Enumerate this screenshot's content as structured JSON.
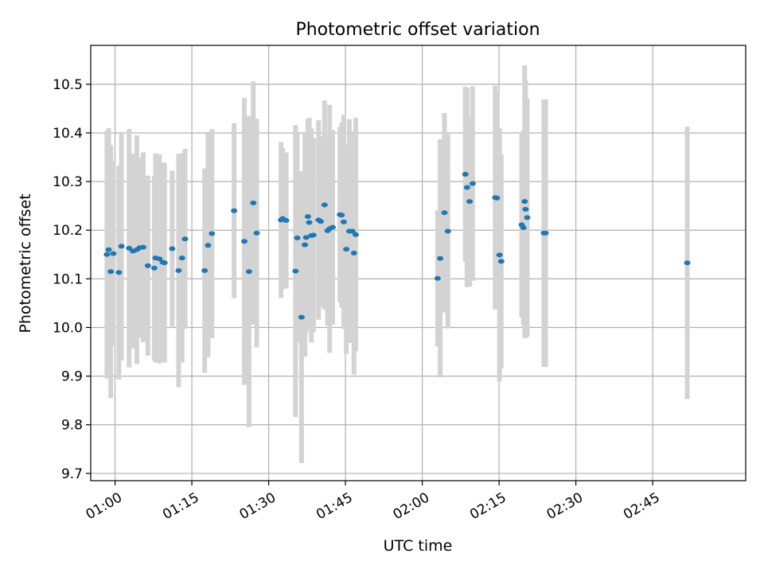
{
  "chart_data": {
    "type": "scatter",
    "title": "Photometric offset variation",
    "xlabel": "UTC time",
    "ylabel": "Photometric offset",
    "xlim": [
      "00:55:15",
      "03:03:10"
    ],
    "ylim": [
      9.685,
      10.58
    ],
    "grid": true,
    "x_ticks": [
      "01:00",
      "01:15",
      "01:30",
      "01:45",
      "02:00",
      "02:15",
      "02:30",
      "02:45"
    ],
    "y_ticks": [
      "9.7",
      "9.8",
      "9.9",
      "10.0",
      "10.1",
      "10.2",
      "10.3",
      "10.4",
      "10.5"
    ],
    "colors": {
      "point": "#1f77b4",
      "errorbar": "#d3d3d3",
      "grid": "#b0b0b0"
    },
    "series": [
      {
        "x": [
          "00:58:25",
          "00:58:45",
          "00:59:10",
          "00:59:40",
          "01:00:45",
          "01:01:15",
          "01:02:45",
          "01:03:30",
          "01:04:15",
          "01:04:50",
          "01:05:30",
          "01:06:25",
          "01:07:40",
          "01:07:55",
          "01:08:40",
          "01:09:20",
          "01:09:40",
          "01:11:10",
          "01:12:25",
          "01:13:05",
          "01:13:40",
          "01:17:30",
          "01:18:10",
          "01:18:55",
          "01:23:15",
          "01:25:15",
          "01:26:10",
          "01:27:00",
          "01:27:40",
          "01:32:25",
          "01:32:45",
          "01:33:25",
          "01:35:15",
          "01:35:35",
          "01:36:25",
          "01:37:05",
          "01:37:20",
          "01:37:40",
          "01:37:55",
          "01:38:20",
          "01:38:45",
          "01:39:45",
          "01:40:10",
          "01:40:55",
          "01:41:30",
          "01:41:55",
          "01:42:30",
          "01:43:55",
          "01:44:15",
          "01:44:40",
          "01:45:10",
          "01:45:45",
          "01:46:20",
          "01:46:40",
          "01:47:00",
          "02:03:00",
          "02:03:30",
          "02:04:20",
          "02:05:00",
          "02:08:25",
          "02:08:45",
          "02:09:15",
          "02:09:50",
          "02:14:15",
          "02:14:35",
          "02:15:05",
          "02:15:25",
          "02:19:25",
          "02:19:45",
          "02:20:00",
          "02:20:10",
          "02:20:30",
          "02:23:45",
          "02:24:05",
          "02:51:45"
        ],
        "y": [
          10.15,
          10.16,
          10.115,
          10.152,
          10.113,
          10.167,
          10.163,
          10.157,
          10.16,
          10.164,
          10.165,
          10.127,
          10.122,
          10.143,
          10.141,
          10.134,
          10.133,
          10.162,
          10.117,
          10.143,
          10.182,
          10.117,
          10.169,
          10.193,
          10.24,
          10.177,
          10.115,
          10.256,
          10.194,
          10.221,
          10.224,
          10.22,
          10.116,
          10.184,
          10.021,
          10.17,
          10.185,
          10.228,
          10.216,
          10.189,
          10.19,
          10.221,
          10.218,
          10.252,
          10.199,
          10.203,
          10.206,
          10.232,
          10.231,
          10.217,
          10.161,
          10.198,
          10.198,
          10.153,
          10.191,
          10.101,
          10.142,
          10.236,
          10.198,
          10.315,
          10.288,
          10.259,
          10.296,
          10.267,
          10.266,
          10.149,
          10.136,
          10.211,
          10.205,
          10.259,
          10.243,
          10.226,
          10.194,
          10.194,
          10.133
        ],
        "yerr": [
          0.255,
          0.25,
          0.26,
          0.19,
          0.22,
          0.235,
          0.245,
          0.2,
          0.235,
          0.185,
          0.195,
          0.185,
          0.19,
          0.215,
          0.215,
          0.205,
          0.205,
          0.16,
          0.24,
          0.215,
          0.185,
          0.21,
          0.23,
          0.215,
          0.18,
          0.295,
          0.32,
          0.25,
          0.235,
          0.16,
          0.145,
          0.14,
          0.3,
          0.215,
          0.3,
          0.23,
          0.195,
          0.2,
          0.215,
          0.22,
          0.2,
          0.205,
          0.175,
          0.215,
          0.195,
          0.255,
          0.2,
          0.18,
          0.19,
          0.22,
          0.215,
          0.23,
          0.19,
          0.25,
          0.24,
          0.14,
          0.245,
          0.205,
          0.2,
          0.18,
          0.205,
          0.175,
          0.2,
          0.23,
          0.22,
          0.26,
          0.22,
          0.19,
          0.2,
          0.28,
          0.265,
          0.245,
          0.275,
          0.275,
          0.28
        ]
      }
    ]
  }
}
